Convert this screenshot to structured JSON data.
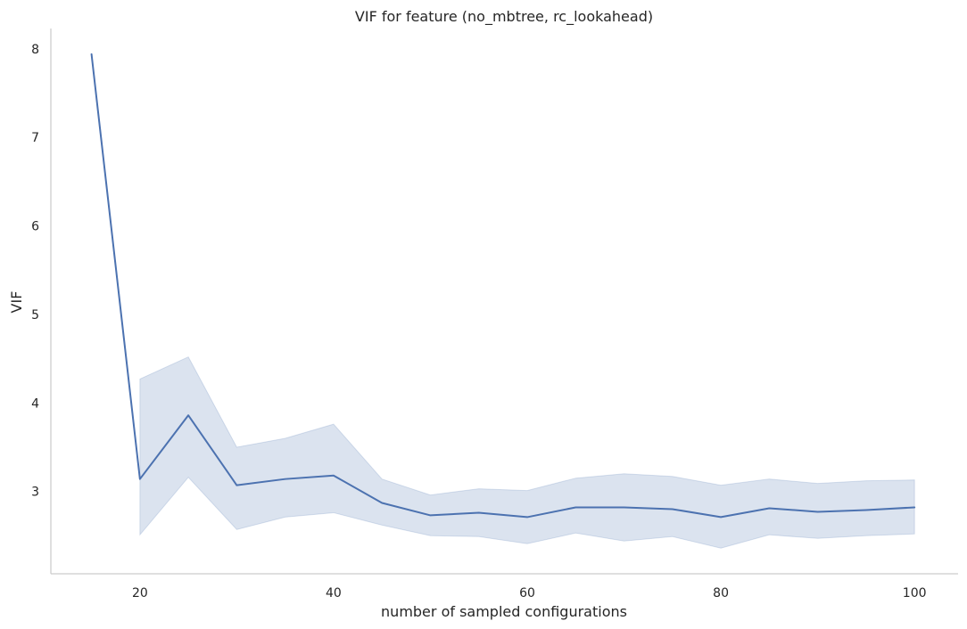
{
  "chart_data": {
    "type": "line",
    "title": "VIF for feature (no_mbtree, rc_lookahead)",
    "xlabel": "number of sampled configurations",
    "ylabel": "VIF",
    "xlim": [
      10.8,
      104.5
    ],
    "ylim": [
      2.07,
      8.23
    ],
    "x_ticks": [
      20,
      40,
      60,
      80,
      100
    ],
    "y_ticks": [
      3,
      4,
      5,
      6,
      7,
      8
    ],
    "grid": false,
    "legend": "none",
    "series_color": "#4c72b0",
    "x": [
      15,
      20,
      25,
      30,
      35,
      40,
      45,
      50,
      55,
      60,
      65,
      70,
      75,
      80,
      85,
      90,
      95,
      100
    ],
    "series": [
      {
        "values": [
          7.94,
          3.14,
          3.86,
          3.07,
          3.14,
          3.18,
          2.87,
          2.73,
          2.76,
          2.71,
          2.82,
          2.82,
          2.8,
          2.71,
          2.81,
          2.77,
          2.79,
          2.82
        ],
        "ci_lower": [
          null,
          2.51,
          3.16,
          2.57,
          2.71,
          2.76,
          2.62,
          2.5,
          2.49,
          2.41,
          2.53,
          2.44,
          2.49,
          2.36,
          2.51,
          2.47,
          2.5,
          2.52
        ],
        "ci_upper": [
          null,
          4.27,
          4.52,
          3.5,
          3.6,
          3.76,
          3.14,
          2.96,
          3.03,
          3.01,
          3.15,
          3.2,
          3.17,
          3.07,
          3.14,
          3.09,
          3.12,
          3.13
        ]
      }
    ]
  }
}
